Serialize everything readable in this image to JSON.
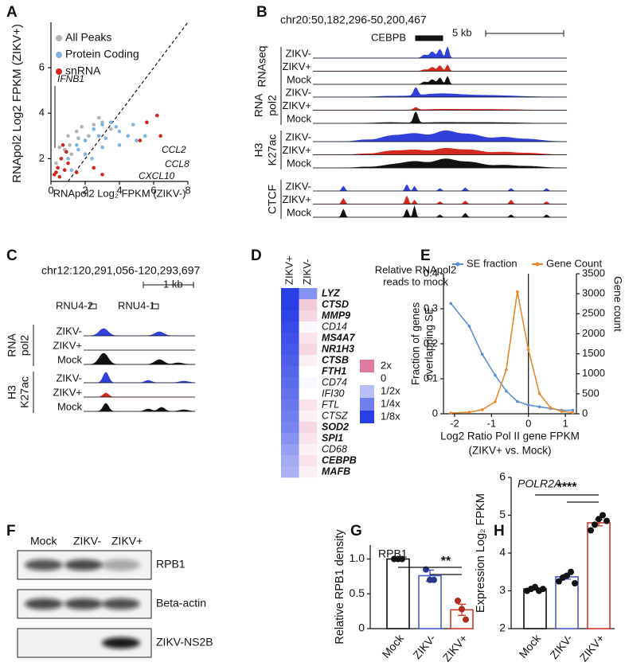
{
  "panel_labels": [
    "A",
    "B",
    "C",
    "D",
    "E",
    "F",
    "G",
    "H"
  ],
  "chart_data": [
    {
      "type": "scatter",
      "xlabel": "RNApol2 Log₂ FPKM (ZIKV-)",
      "ylabel": "RNApol2 Log2 FPKM (ZIKV+)",
      "xlim": [
        0,
        8
      ],
      "ylim": [
        1,
        8
      ],
      "xticks": [
        0,
        2,
        4,
        6,
        8
      ],
      "yticks": [
        2,
        4,
        6
      ],
      "series": [
        {
          "name": "All Peaks",
          "color": "#b3b3b3",
          "x": [
            0.5,
            1,
            1.5,
            2,
            2.5,
            3,
            1.2,
            1.8,
            2.2,
            0.8,
            1.6,
            2.8,
            3.5,
            0.3,
            1.1
          ],
          "values": [
            2.5,
            3,
            3.2,
            2.8,
            3.5,
            3.6,
            2.2,
            3.4,
            3.0,
            2.4,
            2.9,
            3.8,
            3.3,
            1.8,
            2.6
          ]
        },
        {
          "name": "Protein Coding",
          "color": "#7fb2e5",
          "x": [
            1,
            1.5,
            2,
            2.5,
            3,
            3.5,
            4,
            4.5,
            5,
            5.5,
            2,
            3,
            4,
            1.2,
            2.8,
            3.8,
            4.8,
            1.6,
            2.4,
            3.2
          ],
          "values": [
            2,
            2.6,
            2.8,
            3.3,
            3.5,
            3.6,
            3.2,
            3,
            2.8,
            3,
            2.2,
            2.5,
            2.6,
            1.5,
            3.0,
            3.4,
            3.5,
            2.4,
            2.0,
            2.9
          ]
        },
        {
          "name": "snRNA",
          "color": "#d0281e",
          "x": [
            0.2,
            0.4,
            0.6,
            0.8,
            1.0,
            0.5,
            0.3,
            0.9,
            1.5,
            2.5,
            5.2,
            5.6,
            6.2,
            6.4,
            3.0,
            0.7
          ],
          "values": [
            1.3,
            1.6,
            2.0,
            1.5,
            1.8,
            1.2,
            1.4,
            2.3,
            1.4,
            1.6,
            2.8,
            3.6,
            3.9,
            3.0,
            1.3,
            2.6
          ]
        }
      ],
      "annotations": [
        "IFNB1",
        "CCL2",
        "CCL8",
        "CXCL10"
      ]
    },
    {
      "type": "heatmap",
      "columns": [
        "ZIKV+",
        "ZIKV-"
      ],
      "rows": [
        "LYZ",
        "CTSD",
        "MMP9",
        "CD14",
        "MS4A7",
        "NR1H3",
        "CTSB",
        "FTH1",
        "CD74",
        "IFI30",
        "FTL",
        "CTSZ",
        "SOD2",
        "SPI1",
        "CD68",
        "CEBPB",
        "MAFB"
      ],
      "bold_rows": [
        true,
        true,
        true,
        false,
        true,
        true,
        true,
        true,
        false,
        false,
        false,
        false,
        true,
        true,
        false,
        true,
        true
      ],
      "values": [
        [
          -3,
          -1.7
        ],
        [
          -3,
          0.4
        ],
        [
          -2.9,
          0.3
        ],
        [
          -2.8,
          -0.1
        ],
        [
          -2.7,
          0.2
        ],
        [
          -2.6,
          0.3
        ],
        [
          -2.5,
          0.1
        ],
        [
          -2.4,
          0
        ],
        [
          -2.3,
          -0.1
        ],
        [
          -2.2,
          0
        ],
        [
          -2.1,
          0.2
        ],
        [
          -2,
          0.1
        ],
        [
          -1.9,
          0.3
        ],
        [
          -1.7,
          0.2
        ],
        [
          -1.5,
          0.1
        ],
        [
          -1.3,
          0.2
        ],
        [
          -1.2,
          0.1
        ]
      ],
      "legend_title": [
        "Relative RNApol2",
        "reads to mock"
      ],
      "legend_ticks": [
        {
          "value": 1,
          "label": "2x"
        },
        0,
        {
          "value": -1,
          "label": "1/2x"
        },
        {
          "value": -2,
          "label": "1/4x"
        },
        {
          "value": -3,
          "label": "1/8x"
        }
      ],
      "high_color": "#e07aa0",
      "low_color": "#2a3ee6"
    },
    {
      "type": "line",
      "xlabel": [
        "Log2 Ratio Pol II gene FPKM",
        "(ZIKV+ vs. Mock)"
      ],
      "ylabel": [
        "Fraction of genes",
        "overlapping SE"
      ],
      "y2label": "Gene count",
      "xlim": [
        -2.3,
        1.3
      ],
      "ylim": [
        0,
        0.4
      ],
      "y2lim": [
        0,
        3500
      ],
      "xticks": [
        -2,
        -1,
        0,
        1
      ],
      "yticks": [
        0,
        0.1,
        0.2,
        0.3,
        0.4
      ],
      "y2ticks": [
        0,
        500,
        1000,
        1500,
        2000,
        2500,
        3000,
        3500
      ],
      "series": [
        {
          "name": "SE fraction",
          "color": "#5b8fd6",
          "x": [
            -2.1,
            -1.6,
            -1.25,
            -0.9,
            -0.6,
            -0.3,
            0,
            0.3,
            0.6,
            0.9,
            1.2
          ],
          "values": [
            0.315,
            0.25,
            0.17,
            0.11,
            0.065,
            0.035,
            0.025,
            0.02,
            0.015,
            0.01,
            0.01
          ]
        },
        {
          "name": "Gene Count",
          "color": "#e8892c",
          "axis": "y2",
          "x": [
            -2.1,
            -1.6,
            -1.25,
            -0.9,
            -0.6,
            -0.3,
            0,
            0.3,
            0.6,
            0.9,
            1.2
          ],
          "values": [
            20,
            40,
            100,
            300,
            1100,
            3050,
            1600,
            500,
            150,
            60,
            30
          ]
        }
      ]
    },
    {
      "type": "bar",
      "title": "RPB1",
      "ylabel": "Relative RPB1 density",
      "categories": [
        "Mock",
        "ZIKV-",
        "ZIKV+"
      ],
      "values": [
        1.0,
        0.76,
        0.27
      ],
      "errors": [
        0,
        0.08,
        0.08
      ],
      "points": [
        [
          1,
          1,
          1
        ],
        [
          0.85,
          0.7,
          0.7
        ],
        [
          0.4,
          0.28,
          0.13
        ]
      ],
      "colors": [
        "#111111",
        "#4a5bd4",
        "#d03a2a"
      ],
      "point_colors": [
        "#111111",
        "#2a3590",
        "#b02a1e"
      ],
      "ylim": [
        0,
        1.2
      ],
      "yticks": [
        0,
        0.5,
        {
          "value": 1,
          "label": "1.0"
        }
      ],
      "annotations": [
        "**"
      ]
    },
    {
      "type": "bar",
      "title": "POLR2A",
      "ylabel": "Expression Log₂ FPKM",
      "categories": [
        "Mock",
        "ZIKV-",
        "ZIKV+"
      ],
      "values": [
        3.05,
        3.37,
        4.8
      ],
      "errors": [
        0.03,
        0.06,
        0.08
      ],
      "points": [
        [
          3.0,
          3.05,
          3.1,
          3.0,
          3.05
        ],
        [
          3.25,
          3.35,
          3.4,
          3.5,
          3.2
        ],
        [
          4.6,
          4.75,
          4.9,
          5.0,
          4.85
        ]
      ],
      "colors": [
        "#111111",
        "#4a5bd4",
        "#d03a2a"
      ],
      "point_colors": [
        "#111111",
        "#111111",
        "#111111"
      ],
      "ylim": [
        2,
        6
      ],
      "yticks": [
        2,
        3,
        4,
        5,
        6
      ],
      "annotations": [
        "****"
      ]
    }
  ],
  "genome_tracks": [
    {
      "region": "chr20:50,182,296-50,200,467",
      "scale_label": "5 kb",
      "genes": [
        "CEBPB"
      ],
      "track_colors": [
        "#3040d8",
        "#d22a1e",
        "#111111"
      ],
      "groups": [
        {
          "label": [
            "RNAseq"
          ],
          "tracks": [
            "ZIKV-",
            "ZIKV+",
            "Mock"
          ]
        },
        {
          "label": [
            "RNA",
            "pol2"
          ],
          "tracks": [
            "ZIKV-",
            "ZIKV+",
            "Mock"
          ]
        },
        {
          "label": [
            "H3",
            "K27ac"
          ],
          "tracks": [
            "ZIKV-",
            "ZIKV+",
            "Mock"
          ]
        },
        {
          "label": [
            "CTCF"
          ],
          "tracks": [
            "ZIKV-",
            "ZIKV+",
            "Mock"
          ]
        }
      ]
    },
    {
      "region": "chr12:120,291,056-120,293,697",
      "scale_label": "1 kb",
      "genes": [
        "RNU4-2",
        "RNU4-1"
      ],
      "track_colors": [
        "#3040d8",
        "#d22a1e",
        "#111111"
      ],
      "groups": [
        {
          "label": [
            "RNA",
            "pol2"
          ],
          "tracks": [
            "ZIKV-",
            "ZIKV+",
            "Mock"
          ]
        },
        {
          "label": [
            "H3",
            "K27ac"
          ],
          "tracks": [
            "ZIKV-",
            "ZIKV+",
            "Mock"
          ]
        }
      ]
    }
  ],
  "western_blot": {
    "lanes": [
      "Mock",
      "ZIKV-",
      "ZIKV+"
    ],
    "bands": [
      "RPB1",
      "Beta-actin",
      "ZIKV-NS2B"
    ]
  }
}
